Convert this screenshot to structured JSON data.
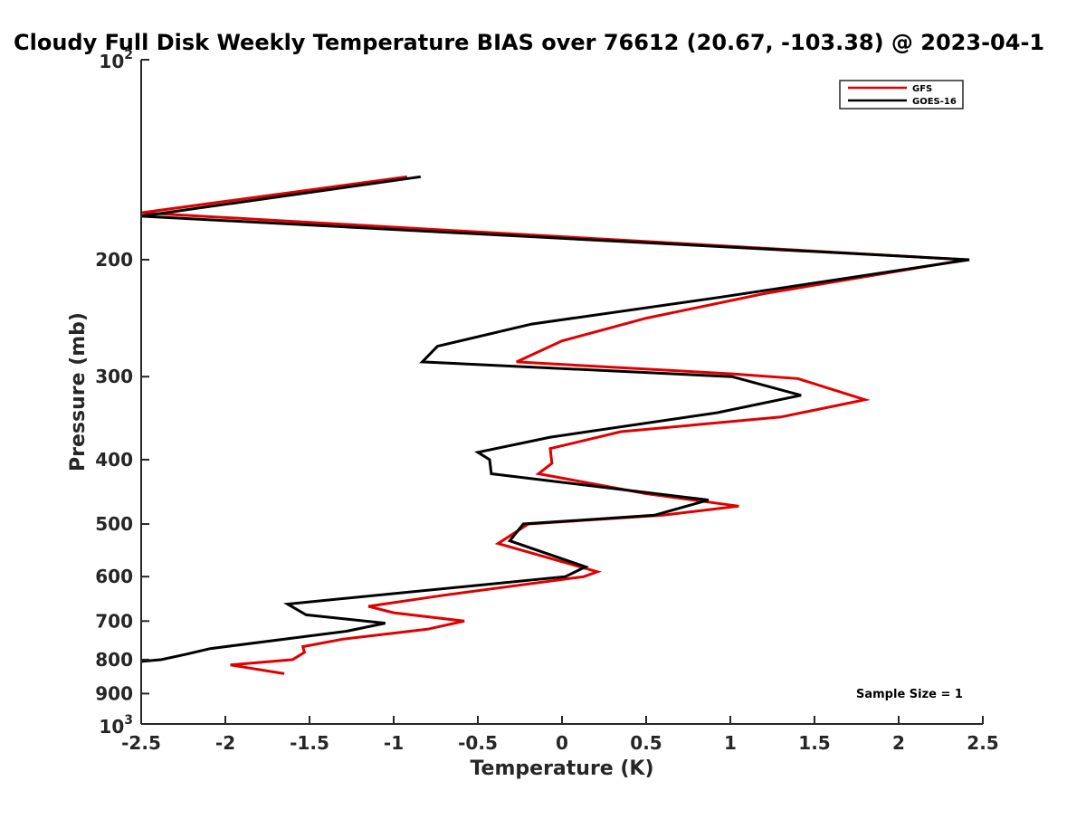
{
  "chart_data": {
    "type": "line",
    "title": "Cloudy Full Disk Weekly Temperature BIAS over 76612 (20.67, -103.38) @ 2023-04-1",
    "xlabel": "Temperature (K)",
    "ylabel": "Pressure (mb)",
    "xlim": [
      -2.5,
      2.5
    ],
    "ylim": [
      100,
      1000
    ],
    "y_scale": "log",
    "y_reversed": true,
    "x_ticks": [
      -2.5,
      -2,
      -1.5,
      -1,
      -0.5,
      0,
      0.5,
      1,
      1.5,
      2,
      2.5
    ],
    "x_tick_labels": [
      "-2.5",
      "-2",
      "-1.5",
      "-1",
      "-0.5",
      "0",
      "0.5",
      "1",
      "1.5",
      "2",
      "2.5"
    ],
    "y_ticks": [
      200,
      300,
      400,
      500,
      600,
      700,
      800,
      900
    ],
    "y_tick_labels": [
      "200",
      "300",
      "400",
      "500",
      "600",
      "700",
      "800",
      "900"
    ],
    "y_top_label": {
      "base": "10",
      "exp": "2"
    },
    "y_bottom_label": {
      "base": "10",
      "exp": "3"
    },
    "legend_position": "top-right",
    "grid": false,
    "annotation": "Sample Size = 1",
    "series": [
      {
        "name": "GFS",
        "color": "#e00000",
        "points": [
          [
            -0.92,
            150
          ],
          [
            -2.5,
            170
          ],
          [
            2.4,
            200
          ],
          [
            1.2,
            225
          ],
          [
            0.5,
            245
          ],
          [
            0,
            265
          ],
          [
            -0.27,
            285
          ],
          [
            1.0,
            297
          ],
          [
            1.4,
            302
          ],
          [
            1.8,
            325
          ],
          [
            1.3,
            345
          ],
          [
            0.35,
            363
          ],
          [
            -0.07,
            385
          ],
          [
            -0.06,
            405
          ],
          [
            -0.14,
            420
          ],
          [
            0.5,
            450
          ],
          [
            1.05,
            470
          ],
          [
            0.6,
            485
          ],
          [
            -0.2,
            500
          ],
          [
            -0.38,
            535
          ],
          [
            0.21,
            590
          ],
          [
            0.13,
            600
          ],
          [
            -0.7,
            640
          ],
          [
            -1.15,
            665
          ],
          [
            -1.0,
            680
          ],
          [
            -0.58,
            700
          ],
          [
            -0.8,
            720
          ],
          [
            -1.3,
            745
          ],
          [
            -1.54,
            765
          ],
          [
            -1.53,
            780
          ],
          [
            -1.6,
            800
          ],
          [
            -1.97,
            815
          ],
          [
            -1.65,
            840
          ]
        ]
      },
      {
        "name": "GOES-16",
        "color": "#000000",
        "points": [
          [
            -0.84,
            150
          ],
          [
            -2.5,
            172
          ],
          [
            2.42,
            200
          ],
          [
            0.93,
            228
          ],
          [
            -0.18,
            250
          ],
          [
            -0.74,
            270
          ],
          [
            -0.83,
            285
          ],
          [
            1.01,
            300
          ],
          [
            1.42,
            320
          ],
          [
            0.92,
            340
          ],
          [
            -0.07,
            370
          ],
          [
            -0.5,
            390
          ],
          [
            -0.43,
            400
          ],
          [
            -0.42,
            420
          ],
          [
            0.87,
            460
          ],
          [
            0.55,
            485
          ],
          [
            -0.23,
            500
          ],
          [
            -0.31,
            530
          ],
          [
            0.14,
            580
          ],
          [
            0.02,
            600
          ],
          [
            -1.63,
            660
          ],
          [
            -1.52,
            685
          ],
          [
            -1.05,
            705
          ],
          [
            -1.28,
            725
          ],
          [
            -2.09,
            770
          ],
          [
            -2.23,
            785
          ],
          [
            -2.38,
            800
          ],
          [
            -2.5,
            805
          ]
        ]
      }
    ]
  }
}
